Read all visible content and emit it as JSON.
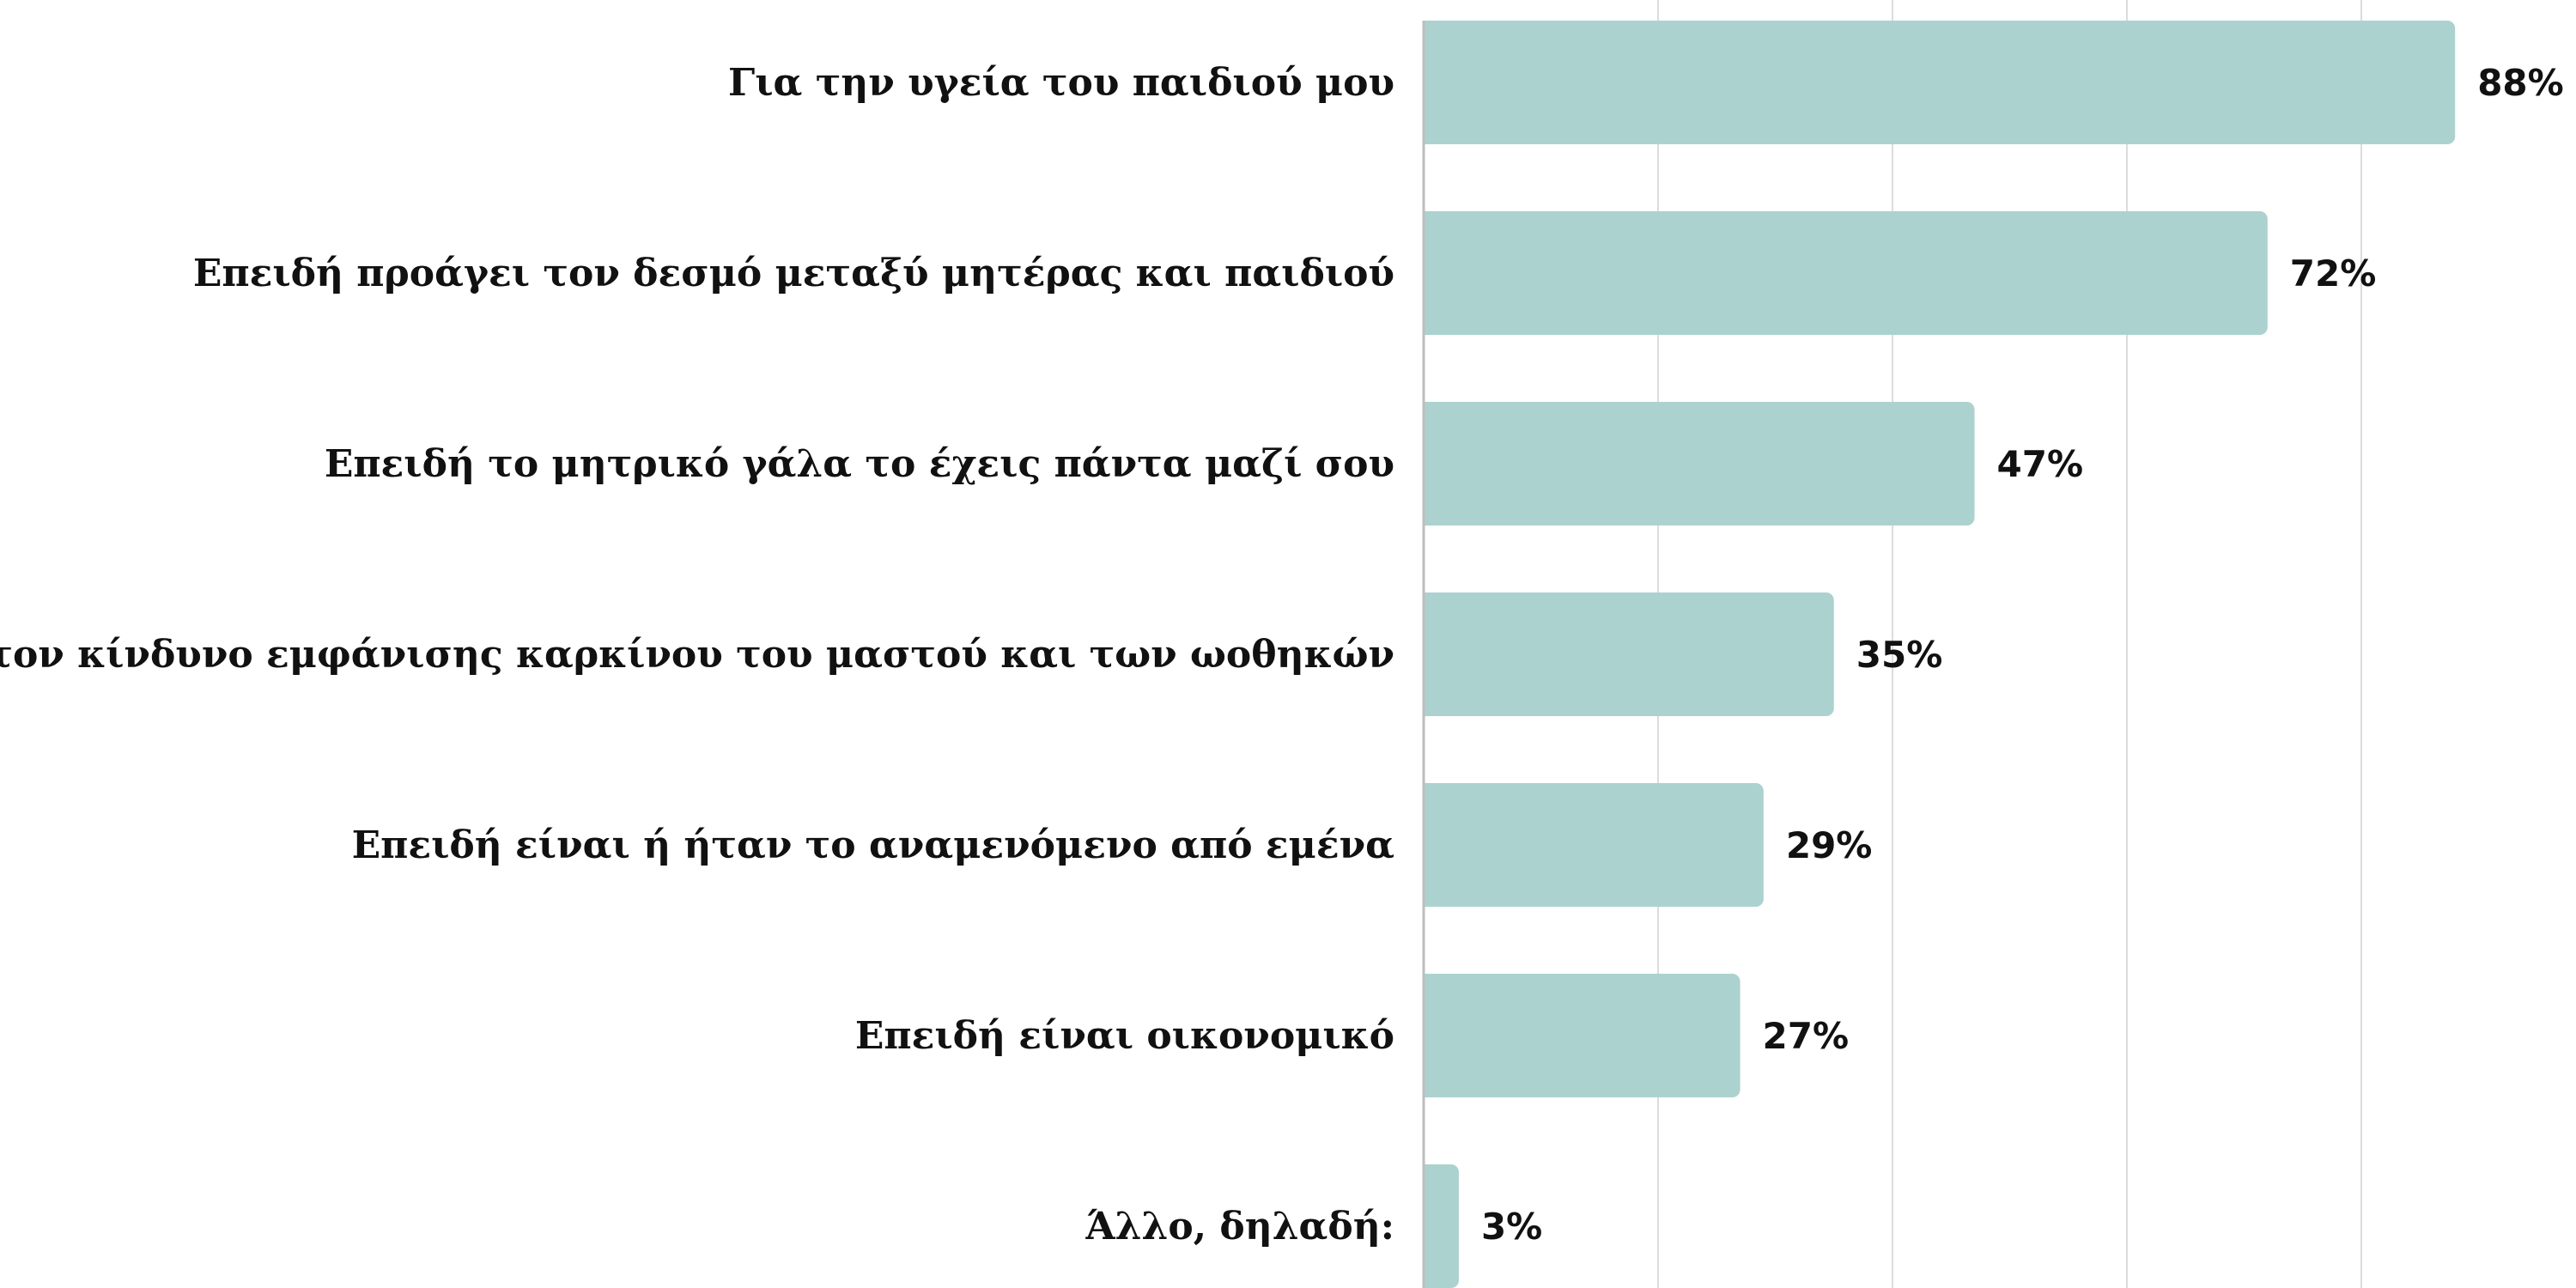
{
  "chart_data": {
    "type": "bar",
    "orientation": "horizontal",
    "categories": [
      "Για την υγεία του παιδιού μου",
      "Επειδή προάγει τον δεσμό μεταξύ μητέρας και παιδιού",
      "Επειδή το μητρικό γάλα το έχεις πάντα μαζί σου",
      "Επειδή μειώνει τον κίνδυνο εμφάνισης καρκίνου του μαστού και των ωοθηκών",
      "Επειδή είναι ή ήταν το αναμενόμενο από εμένα",
      "Επειδή είναι οικονομικό",
      "Άλλο, δηλαδή:"
    ],
    "values": [
      88,
      72,
      47,
      35,
      29,
      27,
      3
    ],
    "value_labels": [
      "88%",
      "72%",
      "47%",
      "35%",
      "29%",
      "27%",
      "3%"
    ],
    "xlim": [
      0,
      100
    ],
    "gridlines": [
      20,
      40,
      60,
      80
    ],
    "grid": true,
    "bar_color": "#acd2cf",
    "gridline_color": "#dcdcdc",
    "axis_color": "#bdbdbd"
  }
}
